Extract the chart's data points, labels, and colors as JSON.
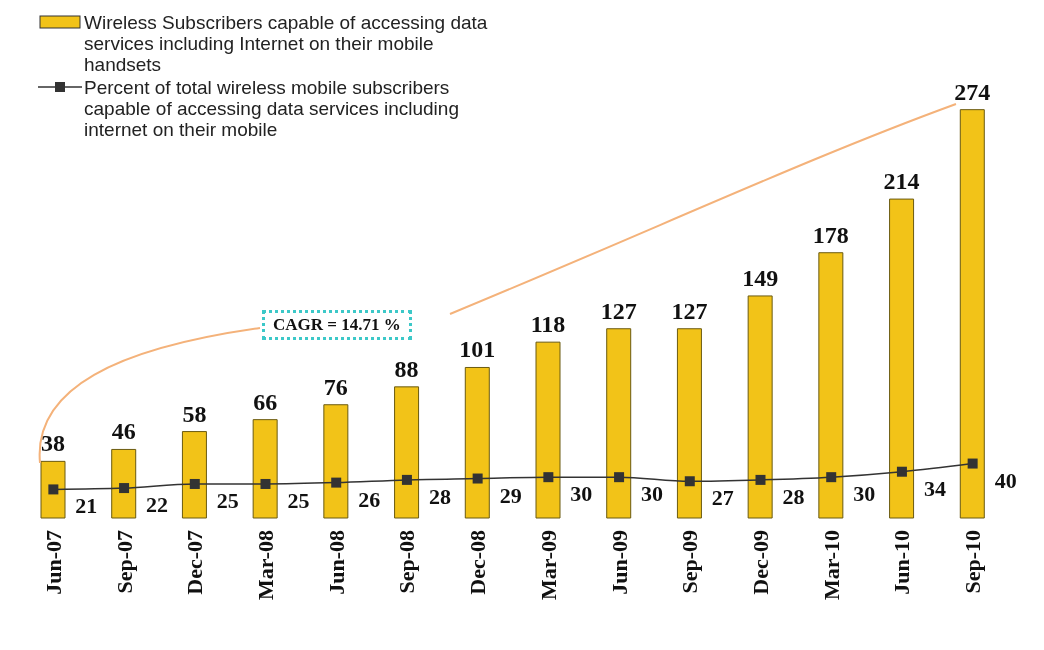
{
  "chart_data": {
    "type": "bar",
    "categories": [
      "Jun-07",
      "Sep-07",
      "Dec-07",
      "Mar-08",
      "Jun-08",
      "Sep-08",
      "Dec-08",
      "Mar-09",
      "Jun-09",
      "Sep-09",
      "Dec-09",
      "Mar-10",
      "Jun-10",
      "Sep-10"
    ],
    "series": [
      {
        "name": "Wireless Subscribers capable of accessing data services including Internet on their mobile handsets",
        "color": "#f2c318",
        "values": [
          38,
          46,
          58,
          66,
          76,
          88,
          101,
          118,
          127,
          127,
          149,
          178,
          214,
          274
        ]
      },
      {
        "name": "Percent of total wireless mobile subscribers capable of accessing data services including internet on their mobile",
        "type": "line",
        "axis": "y2",
        "color": "#333333",
        "values": [
          21,
          22,
          25,
          25,
          26,
          28,
          29,
          30,
          30,
          27,
          28,
          30,
          34,
          40
        ]
      }
    ],
    "data_labels": true,
    "marker": "square",
    "legend": "top left",
    "annotations": [
      "CAGR = 14.71 %"
    ]
  }
}
